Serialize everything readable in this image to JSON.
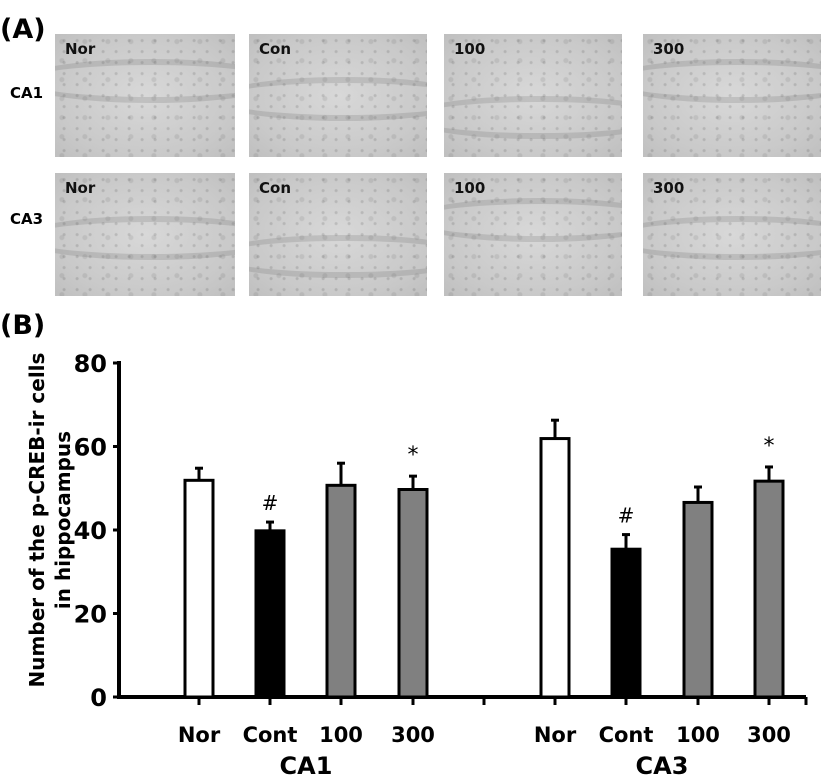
{
  "panel_a": {
    "label": "(A)",
    "rows": [
      {
        "label": "CA1"
      },
      {
        "label": "CA3"
      }
    ],
    "columns": [
      "Nor",
      "Con",
      "100",
      "300"
    ]
  },
  "panel_b": {
    "label": "(B)"
  },
  "chart_data": {
    "type": "bar",
    "ylabel": [
      "Number of the p-CREB-ir cells",
      "in hippocampus"
    ],
    "ylim": [
      0,
      80
    ],
    "yticks": [
      0,
      20,
      40,
      60,
      80
    ],
    "groups": [
      "CA1",
      "CA3"
    ],
    "categories": [
      "Nor",
      "Cont",
      "100",
      "300"
    ],
    "colors": [
      "#ffffff",
      "#000000",
      "#808080",
      "#808080"
    ],
    "series": [
      {
        "group": "CA1",
        "values": [
          51.9,
          39.8,
          50.7,
          49.7
        ],
        "error": [
          2.9,
          2.1,
          5.3,
          3.2
        ],
        "annotations": [
          "",
          "#",
          "",
          "*"
        ]
      },
      {
        "group": "CA3",
        "values": [
          61.9,
          35.4,
          46.6,
          51.7
        ],
        "error": [
          4.4,
          3.5,
          3.7,
          3.4
        ],
        "annotations": [
          "",
          "#",
          "",
          "*"
        ]
      }
    ],
    "grid": false
  }
}
